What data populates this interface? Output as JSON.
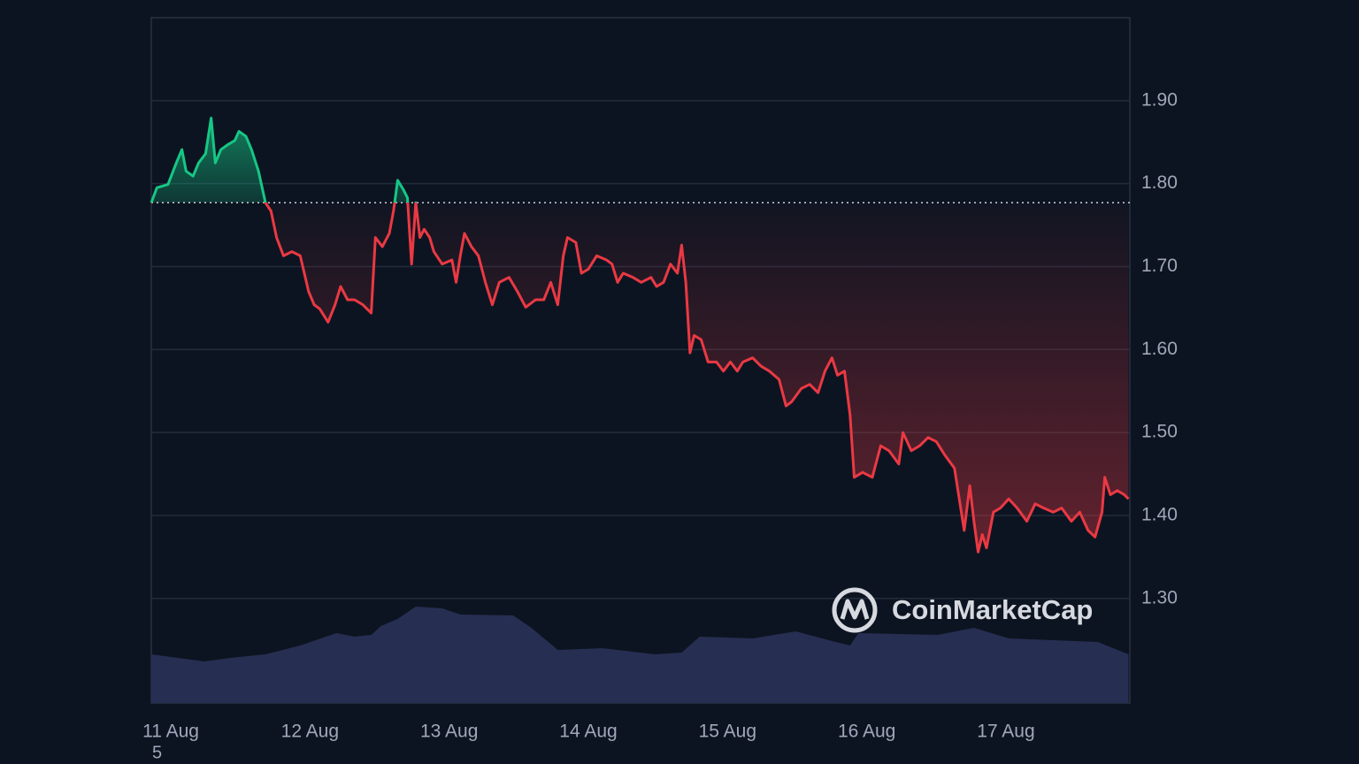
{
  "chart_data": {
    "type": "line",
    "x": [
      -0.14,
      -0.1,
      -0.02,
      0.04,
      0.08,
      0.11,
      0.16,
      0.2,
      0.25,
      0.29,
      0.32,
      0.36,
      0.41,
      0.46,
      0.49,
      0.54,
      0.58,
      0.63,
      0.68,
      0.72,
      0.76,
      0.81,
      0.87,
      0.93,
      0.99,
      1.03,
      1.07,
      1.13,
      1.18,
      1.22,
      1.27,
      1.32,
      1.38,
      1.44,
      1.47,
      1.52,
      1.57,
      1.6,
      1.63,
      1.67,
      1.7,
      1.73,
      1.76,
      1.79,
      1.82,
      1.86,
      1.89,
      1.95,
      2.02,
      2.05,
      2.08,
      2.11,
      2.16,
      2.21,
      2.26,
      2.31,
      2.36,
      2.43,
      2.49,
      2.55,
      2.62,
      2.68,
      2.73,
      2.78,
      2.82,
      2.85,
      2.91,
      2.95,
      3.0,
      3.06,
      3.13,
      3.17,
      3.21,
      3.25,
      3.32,
      3.38,
      3.45,
      3.49,
      3.54,
      3.59,
      3.64,
      3.67,
      3.7,
      3.73,
      3.76,
      3.81,
      3.86,
      3.92,
      3.97,
      4.02,
      4.07,
      4.11,
      4.18,
      4.24,
      4.3,
      4.37,
      4.42,
      4.46,
      4.53,
      4.59,
      4.65,
      4.7,
      4.75,
      4.79,
      4.84,
      4.88,
      4.91,
      4.97,
      5.04,
      5.1,
      5.16,
      5.23,
      5.26,
      5.32,
      5.38,
      5.44,
      5.5,
      5.56,
      5.63,
      5.67,
      5.7,
      5.74,
      5.77,
      5.8,
      5.83,
      5.86,
      5.91,
      5.96,
      6.02,
      6.08,
      6.15,
      6.21,
      6.27,
      6.34,
      6.4,
      6.47,
      6.53,
      6.59,
      6.64,
      6.69,
      6.71,
      6.75,
      6.8,
      6.85,
      6.88
    ],
    "series": [
      {
        "values": [
          1.777,
          1.795,
          1.799,
          1.825,
          1.841,
          1.815,
          1.809,
          1.825,
          1.836,
          1.879,
          1.825,
          1.841,
          1.847,
          1.852,
          1.863,
          1.857,
          1.841,
          1.815,
          1.777,
          1.767,
          1.735,
          1.713,
          1.718,
          1.713,
          1.67,
          1.654,
          1.649,
          1.633,
          1.654,
          1.676,
          1.66,
          1.66,
          1.654,
          1.644,
          1.735,
          1.724,
          1.74,
          1.767,
          1.804,
          1.793,
          1.783,
          1.703,
          1.777,
          1.735,
          1.745,
          1.735,
          1.718,
          1.703,
          1.708,
          1.681,
          1.713,
          1.74,
          1.724,
          1.713,
          1.681,
          1.654,
          1.681,
          1.687,
          1.67,
          1.651,
          1.66,
          1.66,
          1.681,
          1.654,
          1.713,
          1.735,
          1.729,
          1.692,
          1.697,
          1.713,
          1.708,
          1.703,
          1.681,
          1.692,
          1.687,
          1.681,
          1.687,
          1.676,
          1.681,
          1.703,
          1.692,
          1.726,
          1.681,
          1.596,
          1.617,
          1.612,
          1.585,
          1.585,
          1.574,
          1.585,
          1.574,
          1.585,
          1.59,
          1.58,
          1.574,
          1.564,
          1.532,
          1.537,
          1.553,
          1.558,
          1.548,
          1.574,
          1.59,
          1.569,
          1.574,
          1.521,
          1.446,
          1.452,
          1.446,
          1.484,
          1.478,
          1.462,
          1.5,
          1.478,
          1.484,
          1.494,
          1.489,
          1.473,
          1.457,
          1.414,
          1.382,
          1.436,
          1.393,
          1.356,
          1.377,
          1.361,
          1.404,
          1.409,
          1.42,
          1.409,
          1.393,
          1.414,
          1.409,
          1.404,
          1.409,
          1.393,
          1.404,
          1.382,
          1.374,
          1.404,
          1.446,
          1.425,
          1.43,
          1.425,
          1.42
        ]
      }
    ],
    "baseline": 1.777,
    "up_color": "#16c784",
    "down_color": "#ea3943",
    "volume": {
      "color": "#262f52",
      "lim": [
        0,
        120
      ],
      "x": [
        -0.14,
        0.24,
        0.43,
        0.68,
        0.93,
        1.19,
        1.32,
        1.44,
        1.51,
        1.63,
        1.76,
        1.95,
        2.08,
        2.46,
        2.59,
        2.78,
        3.1,
        3.48,
        3.67,
        3.8,
        4.18,
        4.49,
        4.75,
        4.88,
        4.94,
        5.51,
        5.77,
        6.02,
        6.66,
        6.88
      ],
      "values": [
        55,
        47,
        51,
        55,
        65,
        79,
        75,
        77,
        87,
        95,
        109,
        107,
        100,
        99,
        85,
        60,
        62,
        55,
        57,
        75,
        73,
        81,
        70,
        65,
        79,
        77,
        85,
        73,
        69,
        55
      ]
    },
    "xlim": [
      -0.14,
      6.89
    ],
    "xticks": [
      {
        "value": 0,
        "label": "11 Aug"
      },
      {
        "value": 1,
        "label": "12 Aug"
      },
      {
        "value": 2,
        "label": "13 Aug"
      },
      {
        "value": 3,
        "label": "14 Aug"
      },
      {
        "value": 4,
        "label": "15 Aug"
      },
      {
        "value": 5,
        "label": "16 Aug"
      },
      {
        "value": 6,
        "label": "17 Aug"
      }
    ],
    "ylim": [
      1.174,
      2.0
    ],
    "yticks": [
      {
        "value": 1.3,
        "label": "1.30"
      },
      {
        "value": 1.4,
        "label": "1.40"
      },
      {
        "value": 1.5,
        "label": "1.50"
      },
      {
        "value": 1.6,
        "label": "1.60"
      },
      {
        "value": 1.7,
        "label": "1.70"
      },
      {
        "value": 1.8,
        "label": "1.80"
      },
      {
        "value": 1.9,
        "label": "1.90"
      }
    ],
    "grid": true,
    "watermark": "CoinMarketCap",
    "footer_text": "5"
  }
}
